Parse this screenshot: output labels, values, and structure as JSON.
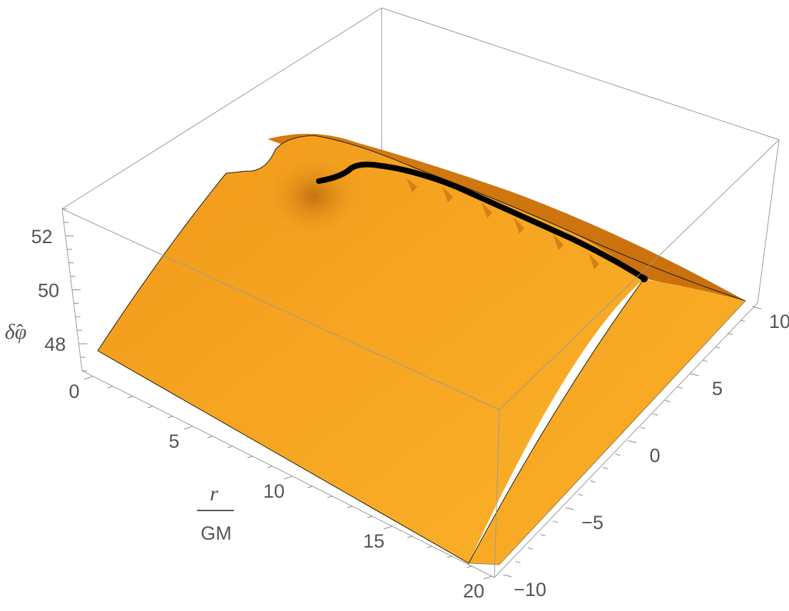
{
  "chart_data": {
    "type": "surface3d",
    "title": "",
    "axes": {
      "x": {
        "label_numerator": "r",
        "label_denominator": "GM",
        "range": [
          0,
          20
        ],
        "ticks": [
          0,
          5,
          10,
          15,
          20
        ]
      },
      "y": {
        "label": "",
        "range": [
          -10,
          10
        ],
        "ticks": [
          -10,
          -5,
          0,
          5,
          10
        ]
      },
      "z": {
        "label": "δ̂φ",
        "range": [
          47,
          53
        ],
        "ticks": [
          48,
          50,
          52
        ]
      }
    },
    "tick_labels": {
      "x": [
        "0",
        "5",
        "10",
        "15",
        "20"
      ],
      "y": [
        "−10",
        "−5",
        "0",
        "5",
        "10"
      ],
      "z": [
        "48",
        "50",
        "52"
      ]
    },
    "surface_color": "#f5a623",
    "curve_color": "#000000",
    "boxed": true
  }
}
